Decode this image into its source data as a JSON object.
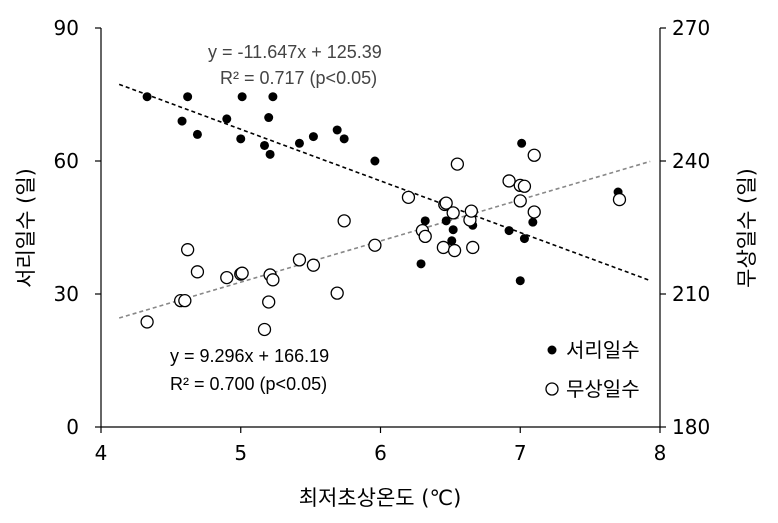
{
  "chart_data": {
    "type": "scatter",
    "xlabel": "최저초상온도 (℃)",
    "ylabel_left": "서리일수 (일)",
    "ylabel_right": "무상일수 (일)",
    "xlim": [
      4,
      8
    ],
    "ylim_left": [
      0,
      90
    ],
    "ylim_right": [
      180,
      270
    ],
    "x_ticks": [
      "4",
      "5",
      "6",
      "7",
      "8"
    ],
    "y_left_ticks": [
      "0",
      "30",
      "60",
      "90"
    ],
    "y_right_ticks": [
      "180",
      "210",
      "240",
      "270"
    ],
    "grid": false,
    "legend_position": "bottom-right",
    "series": [
      {
        "name": "서리일수",
        "axis": "left",
        "marker": "filled-circle",
        "color": "#000000",
        "points": [
          [
            4.33,
            74.5
          ],
          [
            4.58,
            69
          ],
          [
            4.62,
            74.5
          ],
          [
            4.69,
            66
          ],
          [
            4.9,
            69.5
          ],
          [
            5.0,
            65
          ],
          [
            5.01,
            74.5
          ],
          [
            5.17,
            63.5
          ],
          [
            5.2,
            69.8
          ],
          [
            5.21,
            61.5
          ],
          [
            5.23,
            74.5
          ],
          [
            5.42,
            64
          ],
          [
            5.52,
            65.5
          ],
          [
            5.69,
            67
          ],
          [
            5.74,
            65
          ],
          [
            5.96,
            60
          ],
          [
            6.29,
            36.8
          ],
          [
            6.32,
            46.5
          ],
          [
            6.47,
            46.5
          ],
          [
            6.51,
            42
          ],
          [
            6.52,
            44.5
          ],
          [
            6.66,
            45.5
          ],
          [
            6.92,
            44.3
          ],
          [
            7.0,
            33
          ],
          [
            7.01,
            64
          ],
          [
            7.03,
            42.5
          ],
          [
            7.09,
            46.2
          ],
          [
            7.7,
            53
          ]
        ],
        "equation": "y = -11.647x + 125.39",
        "r2": "R² = 0.717 (p<0.05)",
        "trend_line_color": "#000000"
      },
      {
        "name": "무상일수",
        "axis": "right",
        "marker": "open-circle",
        "color": "#000000",
        "points": [
          [
            4.33,
            203.7
          ],
          [
            4.57,
            208.5
          ],
          [
            4.6,
            208.5
          ],
          [
            4.62,
            220
          ],
          [
            4.69,
            215
          ],
          [
            4.9,
            213.7
          ],
          [
            5.0,
            214.5
          ],
          [
            5.01,
            214.7
          ],
          [
            5.17,
            202
          ],
          [
            5.2,
            208.2
          ],
          [
            5.21,
            214.3
          ],
          [
            5.23,
            213.2
          ],
          [
            5.42,
            217.7
          ],
          [
            5.52,
            216.5
          ],
          [
            5.69,
            210.2
          ],
          [
            5.74,
            226.5
          ],
          [
            5.96,
            221
          ],
          [
            6.2,
            231.8
          ],
          [
            6.3,
            224.3
          ],
          [
            6.32,
            223
          ],
          [
            6.45,
            220.5
          ],
          [
            6.46,
            230.2
          ],
          [
            6.47,
            230.5
          ],
          [
            6.52,
            228.3
          ],
          [
            6.53,
            219.8
          ],
          [
            6.55,
            239.3
          ],
          [
            6.64,
            226.7
          ],
          [
            6.65,
            228.7
          ],
          [
            6.66,
            220.5
          ],
          [
            6.92,
            235.5
          ],
          [
            7.0,
            234.5
          ],
          [
            7.0,
            231
          ],
          [
            7.03,
            234.3
          ],
          [
            7.1,
            241.3
          ],
          [
            7.1,
            228.5
          ],
          [
            7.71,
            231.3
          ]
        ],
        "equation": "y = 9.296x + 166.19",
        "r2": "R² = 0.700 (p<0.05)",
        "trend_line_color": "#888888"
      }
    ]
  }
}
